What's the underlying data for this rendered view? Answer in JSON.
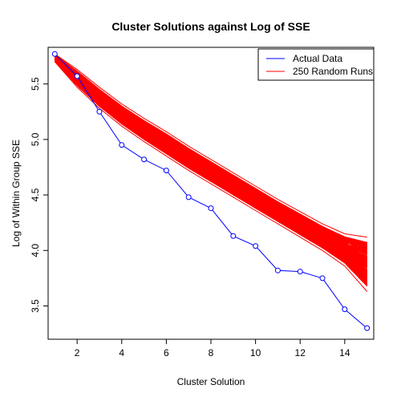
{
  "chart_data": {
    "type": "line",
    "title": "Cluster Solutions against Log of SSE",
    "xlabel": "Cluster Solution",
    "ylabel": "Log of Within Group SSE",
    "xlim": [
      0.7,
      15.3
    ],
    "ylim": [
      3.2,
      5.83
    ],
    "x_ticks": [
      2,
      4,
      6,
      8,
      10,
      12,
      14
    ],
    "x_tick_labels": [
      "2",
      "4",
      "6",
      "8",
      "10",
      "12",
      "14"
    ],
    "y_ticks": [
      3.5,
      4.0,
      4.5,
      5.0,
      5.5
    ],
    "y_tick_labels": [
      "3.5",
      "4.0",
      "4.5",
      "5.0",
      "5.5"
    ],
    "grid": false,
    "legend_position": "top-right",
    "legend": [
      {
        "label": "Actual Data",
        "color": "#0000ff"
      },
      {
        "label": "250 Random Runs",
        "color": "#ff0000"
      }
    ],
    "series": [
      {
        "name": "Actual Data",
        "color": "#0000ff",
        "marker": "open-circle",
        "x": [
          1,
          2,
          3,
          4,
          5,
          6,
          7,
          8,
          9,
          10,
          11,
          12,
          13,
          14,
          15
        ],
        "values": [
          5.77,
          5.57,
          5.25,
          4.95,
          4.82,
          4.72,
          4.48,
          4.38,
          4.13,
          4.04,
          3.82,
          3.81,
          3.75,
          3.47,
          3.3
        ]
      },
      {
        "name": "250 Random Runs",
        "color": "#ff0000",
        "run_count": 250,
        "x": [
          1,
          2,
          3,
          4,
          5,
          6,
          7,
          8,
          9,
          10,
          11,
          12,
          13,
          14,
          15
        ],
        "upper": [
          5.77,
          5.63,
          5.47,
          5.32,
          5.19,
          5.07,
          4.94,
          4.82,
          4.7,
          4.58,
          4.46,
          4.35,
          4.24,
          4.15,
          4.12
        ],
        "lower": [
          5.7,
          5.47,
          5.28,
          5.12,
          4.98,
          4.85,
          4.72,
          4.6,
          4.48,
          4.36,
          4.24,
          4.12,
          4.0,
          3.86,
          3.63
        ]
      }
    ]
  }
}
